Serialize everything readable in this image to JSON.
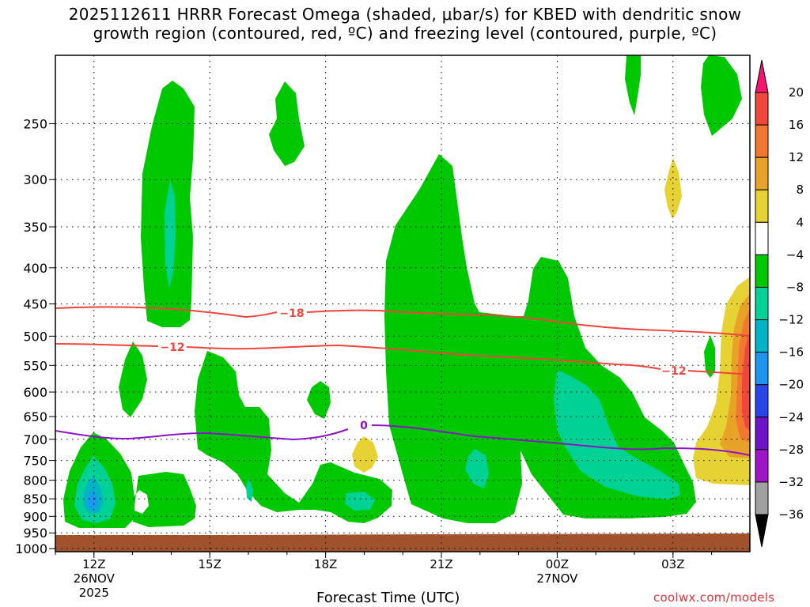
{
  "title": {
    "line1": "2025112611 HRRR Forecast Omega (shaded, μbar/s) for KBED with dendritic snow",
    "line2": "growth region (contoured, red, ºC) and freezing level (contoured, purple, ºC)"
  },
  "credit": "coolwx.com/models",
  "chart_data": {
    "type": "heatmap",
    "title": "2025112611 HRRR Forecast Omega (shaded, μbar/s) for KBED with dendritic snow growth region (contoured, red, ºC) and freezing level (contoured, purple, ºC)",
    "xlabel": "Forecast Time (UTC)",
    "ylabel": "",
    "y_axis": "pressure (hPa), inverted",
    "xlim": [
      "2025-11-26 11Z",
      "2025-11-27 05Z"
    ],
    "ylim": [
      1010,
      200
    ],
    "grid": true,
    "x_ticks": [
      {
        "label": "12Z",
        "sub1": "26NOV",
        "sub2": "2025"
      },
      {
        "label": "15Z",
        "sub1": "",
        "sub2": ""
      },
      {
        "label": "18Z",
        "sub1": "",
        "sub2": ""
      },
      {
        "label": "21Z",
        "sub1": "",
        "sub2": ""
      },
      {
        "label": "00Z",
        "sub1": "27NOV",
        "sub2": ""
      },
      {
        "label": "03Z",
        "sub1": "",
        "sub2": ""
      }
    ],
    "y_ticks": [
      "250",
      "300",
      "350",
      "400",
      "450",
      "500",
      "550",
      "600",
      "650",
      "700",
      "750",
      "800",
      "850",
      "900",
      "950",
      "1000"
    ],
    "colorbar": {
      "levels": [
        "20",
        "16",
        "12",
        "8",
        "4",
        "−4",
        "−8",
        "−12",
        "−16",
        "−20",
        "−24",
        "−28",
        "−32",
        "−36"
      ],
      "colors": [
        "#f5146e",
        "#f0463c",
        "#f07830",
        "#e8a228",
        "#e6d232",
        "#ffffff",
        "#00c800",
        "#00d296",
        "#00b4c8",
        "#1e96f0",
        "#2846e6",
        "#6e14c8",
        "#a014c8",
        "#a0a0a0",
        "#000000"
      ]
    },
    "contours": [
      {
        "kind": "temperature",
        "color": "#f0443c",
        "labels": [
          "−18"
        ],
        "label_value": -18
      },
      {
        "kind": "temperature",
        "color": "#f0443c",
        "labels": [
          "−12",
          "−12"
        ],
        "label_value": -12
      },
      {
        "kind": "freezing_level",
        "color": "#8c14c8",
        "labels": [
          "0"
        ],
        "label_value": 0
      }
    ],
    "shaded_regions": [
      {
        "name": "weak ascent (−4 to −8)",
        "color": "#00c800"
      },
      {
        "name": "moderate ascent (−8 to −12)",
        "color": "#00d296"
      },
      {
        "name": "strong ascent (−12 to −20)",
        "color": "#1e96f0"
      },
      {
        "name": "weak descent (4 to 8)",
        "color": "#e6d232"
      },
      {
        "name": "descent (8 to 16)",
        "color": "#f07830"
      },
      {
        "name": "strong descent (16 to 20)",
        "color": "#f0463c"
      }
    ],
    "terrain_color": "#a0522d"
  }
}
